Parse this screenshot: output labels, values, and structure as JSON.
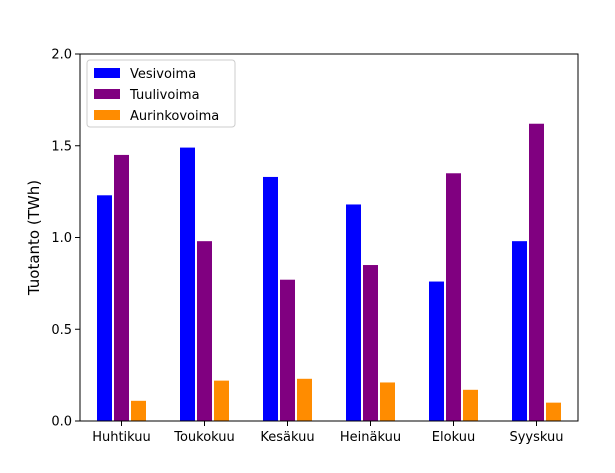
{
  "chart_data": {
    "type": "bar",
    "title": "",
    "xlabel": "",
    "ylabel": "Tuotanto (TWh)",
    "ylim": [
      0,
      2.0
    ],
    "yticks": [
      "0.0",
      "0.5",
      "1.0",
      "1.5",
      "2.0"
    ],
    "categories": [
      "Huhtikuu",
      "Toukokuu",
      "Kesäkuu",
      "Heinäkuu",
      "Elokuu",
      "Syyskuu"
    ],
    "series": [
      {
        "name": "Vesivoima",
        "color": "#0000ff",
        "values": [
          1.23,
          1.49,
          1.33,
          1.18,
          0.76,
          0.98
        ]
      },
      {
        "name": "Tuulivoima",
        "color": "#800080",
        "values": [
          1.45,
          0.98,
          0.77,
          0.85,
          1.35,
          1.62
        ]
      },
      {
        "name": "Aurinkovoima",
        "color": "#ff8c00",
        "values": [
          0.11,
          0.22,
          0.23,
          0.21,
          0.17,
          0.1
        ]
      }
    ],
    "grid": false,
    "legend": "top-left"
  }
}
